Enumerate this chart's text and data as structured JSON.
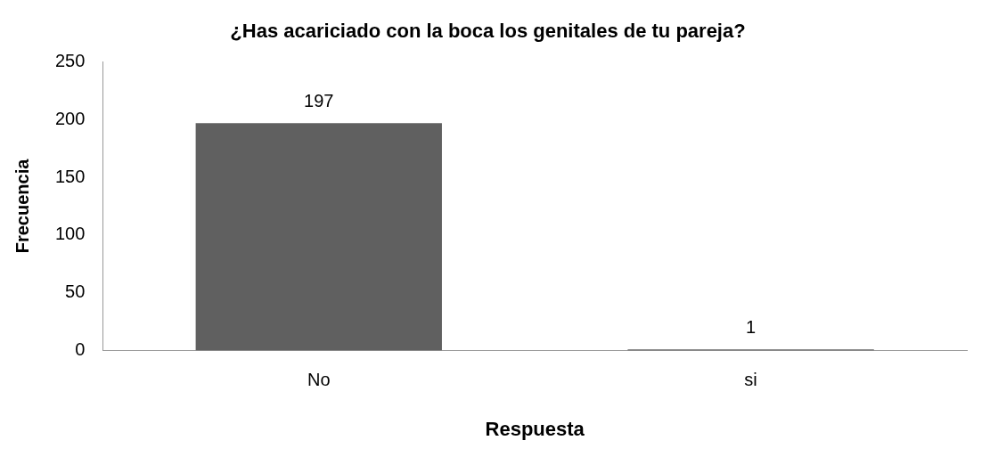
{
  "chart_data": {
    "type": "bar",
    "title": "¿Has acariciado con la boca los genitales de tu pareja?",
    "xlabel": "Respuesta",
    "ylabel": "Frecuencia",
    "categories": [
      "No",
      "si"
    ],
    "values": [
      197,
      1
    ],
    "color": "#606060",
    "ylim": [
      0,
      250
    ],
    "yticks": [
      0,
      50,
      100,
      150,
      200,
      250
    ],
    "grid": false,
    "data_labels": true
  }
}
